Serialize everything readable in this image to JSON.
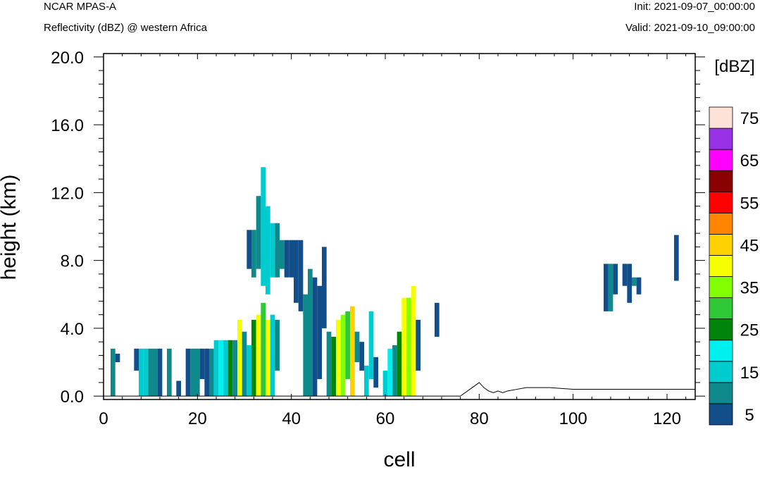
{
  "header": {
    "model": "NCAR MPAS-A",
    "field": "Reflectivity (dBZ) @ western Africa",
    "init": "Init: 2021-09-07_00:00:00",
    "valid": "Valid: 2021-09-10_09:00:00"
  },
  "chart_data": {
    "type": "heatmap",
    "xlabel": "cell",
    "ylabel": "height (km)",
    "xlim": [
      0,
      126
    ],
    "ylim": [
      -0.2,
      20.2
    ],
    "x_ticks": [
      0,
      20,
      40,
      60,
      80,
      100,
      120
    ],
    "x_tick_labels": [
      "0",
      "20",
      "40",
      "60",
      "80",
      "100",
      "120"
    ],
    "y_ticks": [
      0,
      4,
      8,
      12,
      16,
      20
    ],
    "y_tick_labels": [
      "0.0",
      "4.0",
      "8.0",
      "12.0",
      "16.0",
      "20.0"
    ],
    "colorbar": {
      "title": "[dBZ]",
      "levels": [
        5,
        10,
        15,
        20,
        25,
        30,
        35,
        40,
        45,
        50,
        55,
        60,
        65,
        70,
        75
      ],
      "colors": [
        "#124e8a",
        "#0f8a8c",
        "#00cbce",
        "#00f0f0",
        "#00850b",
        "#30c836",
        "#82ff00",
        "#f6ff00",
        "#ffd100",
        "#ff8400",
        "#ff0000",
        "#8b0000",
        "#ff00ff",
        "#9932e6",
        "#fde2d8"
      ],
      "labels": [
        "5",
        "15",
        "25",
        "35",
        "45",
        "55",
        "65",
        "75"
      ],
      "label_levels": [
        5,
        15,
        25,
        35,
        45,
        55,
        65,
        75
      ]
    },
    "cell_size": {
      "dx": 1,
      "dz": 0.5
    },
    "dbz_cells": [
      {
        "x": 2,
        "z0": 0,
        "z1": 2.8,
        "v": 10
      },
      {
        "x": 3,
        "z0": 2.0,
        "z1": 2.5,
        "v": 5
      },
      {
        "x": 7,
        "z0": 1.5,
        "z1": 2.8,
        "v": 5
      },
      {
        "x": 8,
        "z0": 0,
        "z1": 2.8,
        "v": 15
      },
      {
        "x": 9,
        "z0": 0,
        "z1": 2.8,
        "v": 15
      },
      {
        "x": 10,
        "z0": 0,
        "z1": 2.8,
        "v": 10
      },
      {
        "x": 11,
        "z0": 0,
        "z1": 2.8,
        "v": 10
      },
      {
        "x": 12,
        "z0": 0,
        "z1": 2.8,
        "v": 5
      },
      {
        "x": 14,
        "z0": 0,
        "z1": 2.8,
        "v": 10
      },
      {
        "x": 16,
        "z0": 0,
        "z1": 0.9,
        "v": 5
      },
      {
        "x": 18,
        "z0": 0,
        "z1": 2.8,
        "v": 5
      },
      {
        "x": 19,
        "z0": 0,
        "z1": 2.8,
        "v": 10
      },
      {
        "x": 20,
        "z0": 0,
        "z1": 2.8,
        "v": 10
      },
      {
        "x": 21,
        "z0": 1.0,
        "z1": 2.8,
        "v": 5
      },
      {
        "x": 22,
        "z0": 0,
        "z1": 2.8,
        "v": 5
      },
      {
        "x": 23,
        "z0": 0,
        "z1": 2.8,
        "v": 10
      },
      {
        "x": 24,
        "z0": 0,
        "z1": 3.3,
        "v": 15
      },
      {
        "x": 25,
        "z0": 0,
        "z1": 3.3,
        "v": 20
      },
      {
        "x": 26,
        "z0": 0,
        "z1": 3.3,
        "v": 15
      },
      {
        "x": 27,
        "z0": 0,
        "z1": 3.3,
        "v": 25
      },
      {
        "x": 28,
        "z0": 0,
        "z1": 3.3,
        "v": 10
      },
      {
        "x": 29,
        "z0": 0,
        "z1": 4.5,
        "v": 40
      },
      {
        "x": 30,
        "z0": 0,
        "z1": 3.8,
        "v": 10
      },
      {
        "x": 31,
        "z0": 0,
        "z1": 3.0,
        "v": 15
      },
      {
        "x": 32,
        "z0": 0,
        "z1": 4.5,
        "v": 25
      },
      {
        "x": 33,
        "z0": 0,
        "z1": 4.8,
        "v": 40
      },
      {
        "x": 34,
        "z0": 0,
        "z1": 5.5,
        "v": 30
      },
      {
        "x": 35,
        "z0": 0,
        "z1": 4.5,
        "v": 40
      },
      {
        "x": 36,
        "z0": 0,
        "z1": 4.8,
        "v": 15
      },
      {
        "x": 37,
        "z0": 1.5,
        "z1": 4.5,
        "v": 10
      },
      {
        "x": 31,
        "z0": 7.5,
        "z1": 9.8,
        "v": 5
      },
      {
        "x": 32,
        "z0": 7.0,
        "z1": 9.8,
        "v": 10
      },
      {
        "x": 33,
        "z0": 7.5,
        "z1": 11.8,
        "v": 10
      },
      {
        "x": 34,
        "z0": 6.5,
        "z1": 13.5,
        "v": 15
      },
      {
        "x": 35,
        "z0": 6.0,
        "z1": 11.2,
        "v": 15
      },
      {
        "x": 36,
        "z0": 7.0,
        "z1": 10.2,
        "v": 15
      },
      {
        "x": 37,
        "z0": 7.0,
        "z1": 10.2,
        "v": 10
      },
      {
        "x": 38,
        "z0": 7.5,
        "z1": 9.2,
        "v": 10
      },
      {
        "x": 39,
        "z0": 7.0,
        "z1": 9.2,
        "v": 5
      },
      {
        "x": 40,
        "z0": 7.0,
        "z1": 9.2,
        "v": 5
      },
      {
        "x": 41,
        "z0": 5.5,
        "z1": 9.2,
        "v": 5
      },
      {
        "x": 42,
        "z0": 5.0,
        "z1": 9.2,
        "v": 5
      },
      {
        "x": 43,
        "z0": 0,
        "z1": 6.0,
        "v": 10
      },
      {
        "x": 44,
        "z0": 0,
        "z1": 7.5,
        "v": 10
      },
      {
        "x": 45,
        "z0": 0,
        "z1": 7.0,
        "v": 5
      },
      {
        "x": 46,
        "z0": 1.0,
        "z1": 6.5,
        "v": 5
      },
      {
        "x": 47,
        "z0": 4.0,
        "z1": 8.8,
        "v": 5
      },
      {
        "x": 48,
        "z0": 0,
        "z1": 3.8,
        "v": 10
      },
      {
        "x": 49,
        "z0": 0,
        "z1": 3.5,
        "v": 25
      },
      {
        "x": 50,
        "z0": 0,
        "z1": 4.5,
        "v": 40
      },
      {
        "x": 51,
        "z0": 0,
        "z1": 4.8,
        "v": 35
      },
      {
        "x": 52,
        "z0": 1.0,
        "z1": 5.0,
        "v": 30
      },
      {
        "x": 53,
        "z0": 0,
        "z1": 5.3,
        "v": 45
      },
      {
        "x": 54,
        "z0": 2.0,
        "z1": 3.8,
        "v": 10
      },
      {
        "x": 55,
        "z0": 1.5,
        "z1": 3.2,
        "v": 5
      },
      {
        "x": 56,
        "z0": 0,
        "z1": 1.8,
        "v": 15
      },
      {
        "x": 57,
        "z0": 1.0,
        "z1": 5.0,
        "v": 15
      },
      {
        "x": 58,
        "z0": 0.5,
        "z1": 2.3,
        "v": 5
      },
      {
        "x": 60,
        "z0": 0,
        "z1": 1.5,
        "v": 15
      },
      {
        "x": 61,
        "z0": 0,
        "z1": 2.8,
        "v": 20
      },
      {
        "x": 62,
        "z0": 0,
        "z1": 3.0,
        "v": 10
      },
      {
        "x": 63,
        "z0": 0,
        "z1": 3.8,
        "v": 25
      },
      {
        "x": 64,
        "z0": 0,
        "z1": 5.8,
        "v": 40
      },
      {
        "x": 65,
        "z0": 0,
        "z1": 5.8,
        "v": 35
      },
      {
        "x": 66,
        "z0": 0,
        "z1": 6.5,
        "v": 40
      },
      {
        "x": 67,
        "z0": 1.5,
        "z1": 4.5,
        "v": 5
      },
      {
        "x": 71,
        "z0": 3.5,
        "z1": 5.5,
        "v": 5
      },
      {
        "x": 107,
        "z0": 5.0,
        "z1": 7.8,
        "v": 5
      },
      {
        "x": 108,
        "z0": 5.0,
        "z1": 7.8,
        "v": 10
      },
      {
        "x": 109,
        "z0": 6.0,
        "z1": 7.8,
        "v": 5
      },
      {
        "x": 111,
        "z0": 6.5,
        "z1": 7.8,
        "v": 5
      },
      {
        "x": 112,
        "z0": 5.5,
        "z1": 7.8,
        "v": 5
      },
      {
        "x": 113,
        "z0": 6.5,
        "z1": 7.0,
        "v": 10
      },
      {
        "x": 114,
        "z0": 6.0,
        "z1": 7.0,
        "v": 5
      },
      {
        "x": 122,
        "z0": 6.8,
        "z1": 9.5,
        "v": 5
      }
    ],
    "terrain": {
      "x": [
        0,
        76,
        78,
        80,
        81,
        82,
        83,
        84,
        85,
        86,
        88,
        90,
        95,
        100,
        105,
        110,
        115,
        120,
        126
      ],
      "z": [
        0,
        0,
        0.4,
        0.8,
        0.5,
        0.3,
        0.2,
        0.3,
        0.2,
        0.3,
        0.4,
        0.5,
        0.5,
        0.4,
        0.4,
        0.4,
        0.4,
        0.4,
        0.4
      ]
    }
  }
}
